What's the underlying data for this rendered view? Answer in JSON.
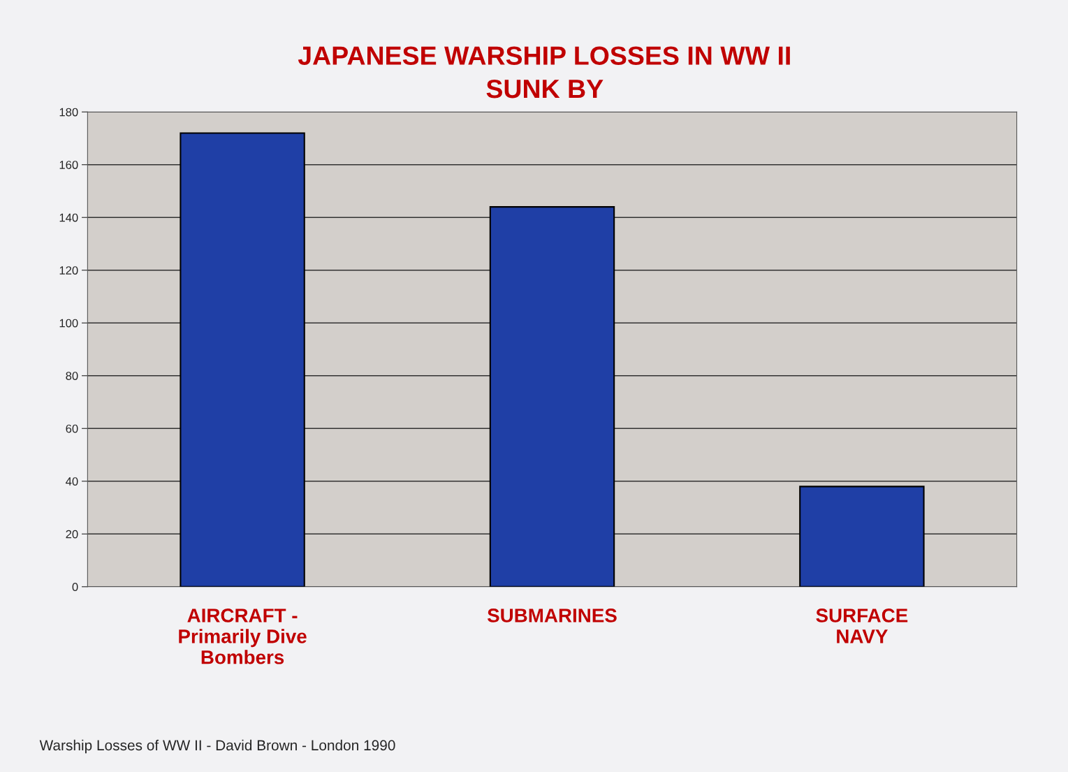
{
  "chart_data": {
    "type": "bar",
    "title": "JAPANESE WARSHIP LOSSES IN WW II",
    "subtitle": "SUNK BY",
    "categories": [
      "AIRCRAFT -\nPrimarily Dive\nBombers",
      "SUBMARINES",
      "SURFACE\nNAVY"
    ],
    "values": [
      172,
      144,
      38
    ],
    "color": "#1f3fa6",
    "ylim": [
      0,
      180
    ],
    "yticks": [
      0,
      20,
      40,
      60,
      80,
      100,
      120,
      140,
      160,
      180
    ],
    "grid": "y",
    "legend": false,
    "annotations": [
      "Warship Losses of WW II - David Brown - London 1990"
    ]
  }
}
